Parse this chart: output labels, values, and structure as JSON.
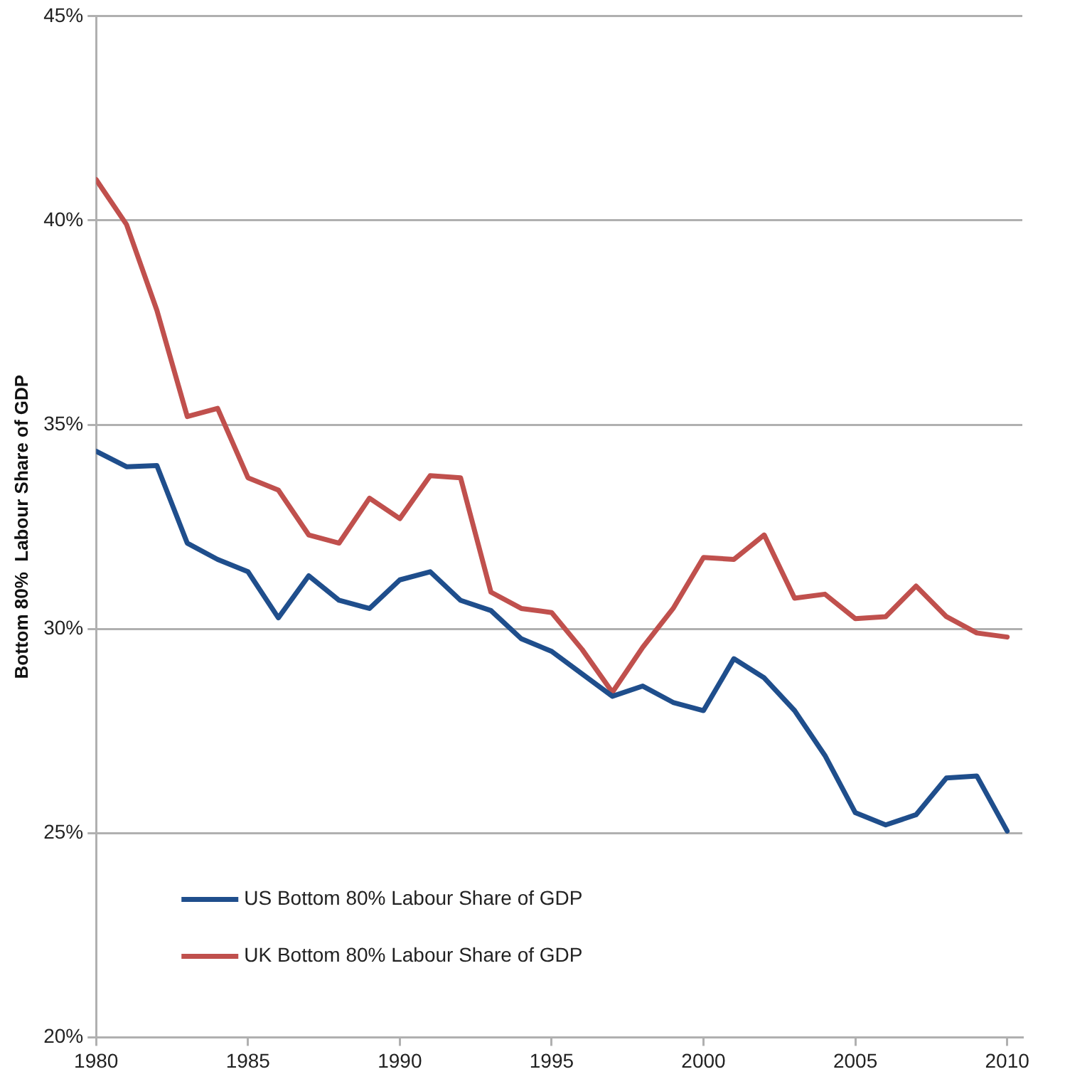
{
  "chart_data": {
    "type": "line",
    "ylabel": "Bottom 80%  Labour Share of GDP",
    "x": [
      1980,
      1981,
      1982,
      1983,
      1984,
      1985,
      1986,
      1987,
      1988,
      1989,
      1990,
      1991,
      1992,
      1993,
      1994,
      1995,
      1996,
      1997,
      1998,
      1999,
      2000,
      2001,
      2002,
      2003,
      2004,
      2005,
      2006,
      2007,
      2008,
      2009,
      2010
    ],
    "series": [
      {
        "name": "US Bottom 80% Labour Share of GDP",
        "color": "#1f4e8c",
        "values": [
          34.35,
          33.97,
          34.0,
          32.1,
          31.7,
          31.4,
          30.27,
          31.3,
          30.7,
          30.5,
          31.2,
          31.4,
          30.7,
          30.45,
          29.76,
          29.45,
          28.9,
          28.35,
          28.6,
          28.2,
          28.0,
          29.27,
          28.8,
          28.0,
          26.9,
          25.5,
          25.2,
          25.45,
          26.35,
          26.4,
          25.05
        ]
      },
      {
        "name": "UK Bottom 80% Labour Share of GDP",
        "color": "#c0504d",
        "values": [
          41.0,
          39.9,
          37.8,
          35.2,
          35.4,
          33.7,
          33.4,
          32.3,
          32.1,
          33.2,
          32.7,
          33.75,
          33.7,
          30.9,
          30.5,
          30.4,
          29.5,
          28.45,
          29.55,
          30.5,
          31.75,
          31.7,
          32.3,
          30.75,
          30.85,
          30.25,
          30.3,
          31.05,
          30.3,
          29.9,
          29.8
        ]
      }
    ],
    "xlim": [
      1980,
      2010.5
    ],
    "xticks": [
      1980,
      1985,
      1990,
      1995,
      2000,
      2005,
      2010
    ],
    "ylim": [
      20,
      45
    ],
    "yticks": [
      {
        "value": 20,
        "label": "20%"
      },
      {
        "value": 25,
        "label": "25%"
      },
      {
        "value": 30,
        "label": "30%"
      },
      {
        "value": 35,
        "label": "35%"
      },
      {
        "value": 40,
        "label": "40%"
      },
      {
        "value": 45,
        "label": "45%"
      }
    ],
    "grid": "y",
    "legend": "bottom left",
    "marker": "none",
    "line_style": "solid"
  }
}
